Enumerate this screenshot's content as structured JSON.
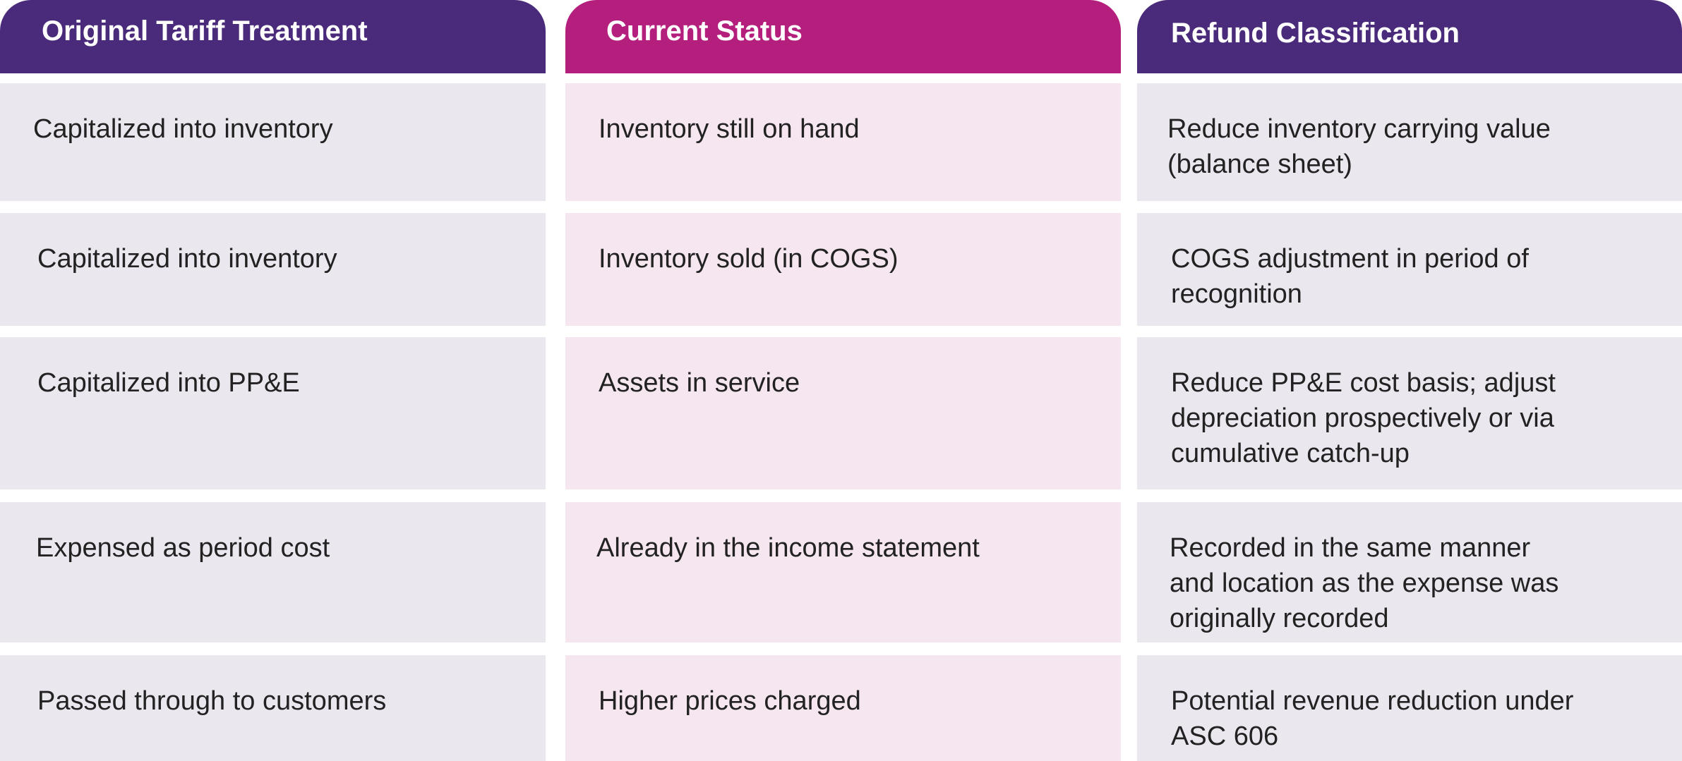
{
  "headers": {
    "col1": "Original Tariff Treatment",
    "col2": "Current Status",
    "col3": "Refund Classification"
  },
  "colors": {
    "purple": "#4a2a7a",
    "magenta": "#b41f7d",
    "grey_cell": "#eae7ee",
    "pink_cell": "#f5e6f0"
  },
  "rows": [
    {
      "treatment": "Capitalized into inventory",
      "status": "Inventory still on hand",
      "refund": [
        "Reduce inventory carrying value",
        "(balance sheet)"
      ]
    },
    {
      "treatment": "Capitalized into inventory",
      "status": "Inventory sold (in COGS)",
      "refund": [
        "COGS adjustment in period of",
        "recognition"
      ]
    },
    {
      "treatment": "Capitalized into PP&E",
      "status": "Assets in service",
      "refund": [
        "Reduce PP&E cost basis; adjust",
        "depreciation prospectively or via",
        "cumulative catch-up"
      ]
    },
    {
      "treatment": "Expensed as period cost",
      "status": "Already in the income statement",
      "refund": [
        "Recorded in the same manner",
        "and location as the expense was",
        "originally recorded"
      ]
    },
    {
      "treatment": "Passed through to customers",
      "status": "Higher prices charged",
      "refund": [
        "Potential revenue reduction under",
        "ASC 606"
      ]
    }
  ]
}
